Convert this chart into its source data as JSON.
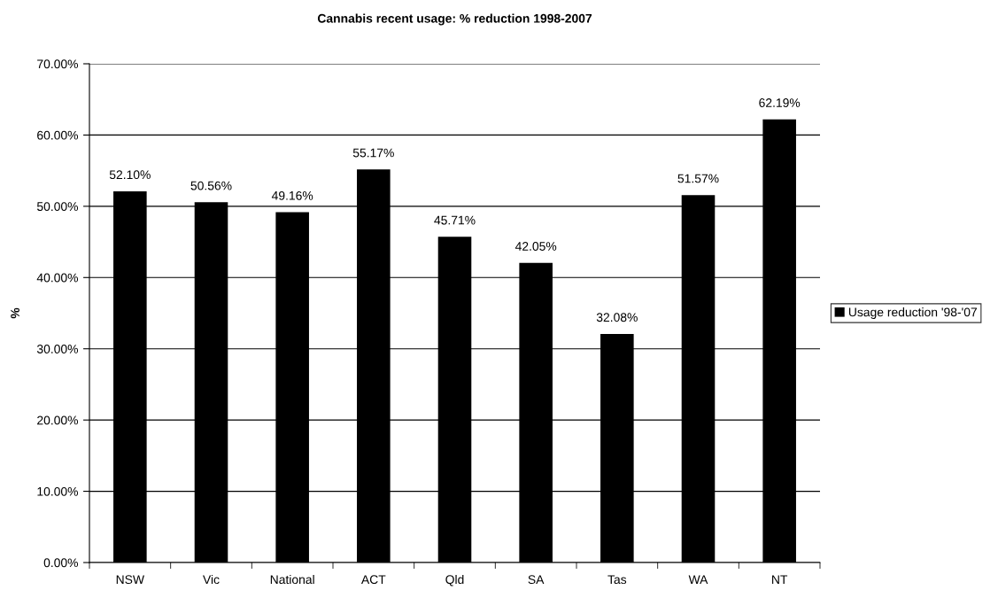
{
  "chart_data": {
    "type": "bar",
    "title": "Cannabis recent usage: % reduction 1998-2007",
    "ylabel": "%",
    "categories": [
      "NSW",
      "Vic",
      "National",
      "ACT",
      "Qld",
      "SA",
      "Tas",
      "WA",
      "NT"
    ],
    "series": [
      {
        "name": "Usage reduction '98-'07",
        "color": "#000000",
        "values": [
          52.1,
          50.56,
          49.16,
          55.17,
          45.71,
          42.05,
          32.08,
          51.57,
          62.19
        ],
        "value_labels": [
          "52.10%",
          "50.56%",
          "49.16%",
          "55.17%",
          "45.71%",
          "42.05%",
          "32.08%",
          "51.57%",
          "62.19%"
        ]
      }
    ],
    "ylim": [
      0,
      70
    ],
    "yticks": [
      {
        "value": 0,
        "label": "0.00%"
      },
      {
        "value": 10,
        "label": "10.00%"
      },
      {
        "value": 20,
        "label": "20.00%"
      },
      {
        "value": 30,
        "label": "30.00%"
      },
      {
        "value": 40,
        "label": "40.00%"
      },
      {
        "value": 50,
        "label": "50.00%"
      },
      {
        "value": 60,
        "label": "60.00%"
      },
      {
        "value": 70,
        "label": "70.00%"
      }
    ],
    "grid": "y",
    "legend": "right"
  }
}
